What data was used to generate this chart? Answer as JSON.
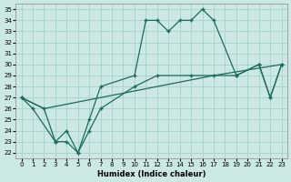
{
  "xlabel": "Humidex (Indice chaleur)",
  "bg_color": "#cce8e4",
  "grid_color": "#aad4cc",
  "line_color": "#1a6b5a",
  "xlim": [
    -0.5,
    23.5
  ],
  "ylim": [
    21.5,
    35.5
  ],
  "yticks": [
    22,
    23,
    24,
    25,
    26,
    27,
    28,
    29,
    30,
    31,
    32,
    33,
    34,
    35
  ],
  "xticks": [
    0,
    1,
    2,
    3,
    4,
    5,
    6,
    7,
    8,
    9,
    10,
    11,
    12,
    13,
    14,
    15,
    16,
    17,
    18,
    19,
    20,
    21,
    22,
    23
  ],
  "line1_x": [
    0,
    1,
    3,
    4,
    5,
    6,
    7,
    10,
    11,
    12,
    13,
    14,
    15,
    16,
    17,
    19,
    21,
    22,
    23
  ],
  "line1_y": [
    27,
    26,
    23,
    23,
    22,
    25,
    28,
    29,
    34,
    34,
    33,
    34,
    34,
    35,
    34,
    29,
    30,
    27,
    30
  ],
  "line2_x": [
    0,
    2,
    17,
    23
  ],
  "line2_y": [
    27,
    26,
    29,
    30
  ],
  "line3_x": [
    0,
    2,
    3,
    4,
    5,
    6,
    7,
    10,
    12,
    15,
    17,
    19,
    21,
    22,
    23
  ],
  "line3_y": [
    27,
    26,
    23,
    24,
    22,
    24,
    26,
    28,
    29,
    29,
    29,
    29,
    30,
    27,
    30
  ]
}
